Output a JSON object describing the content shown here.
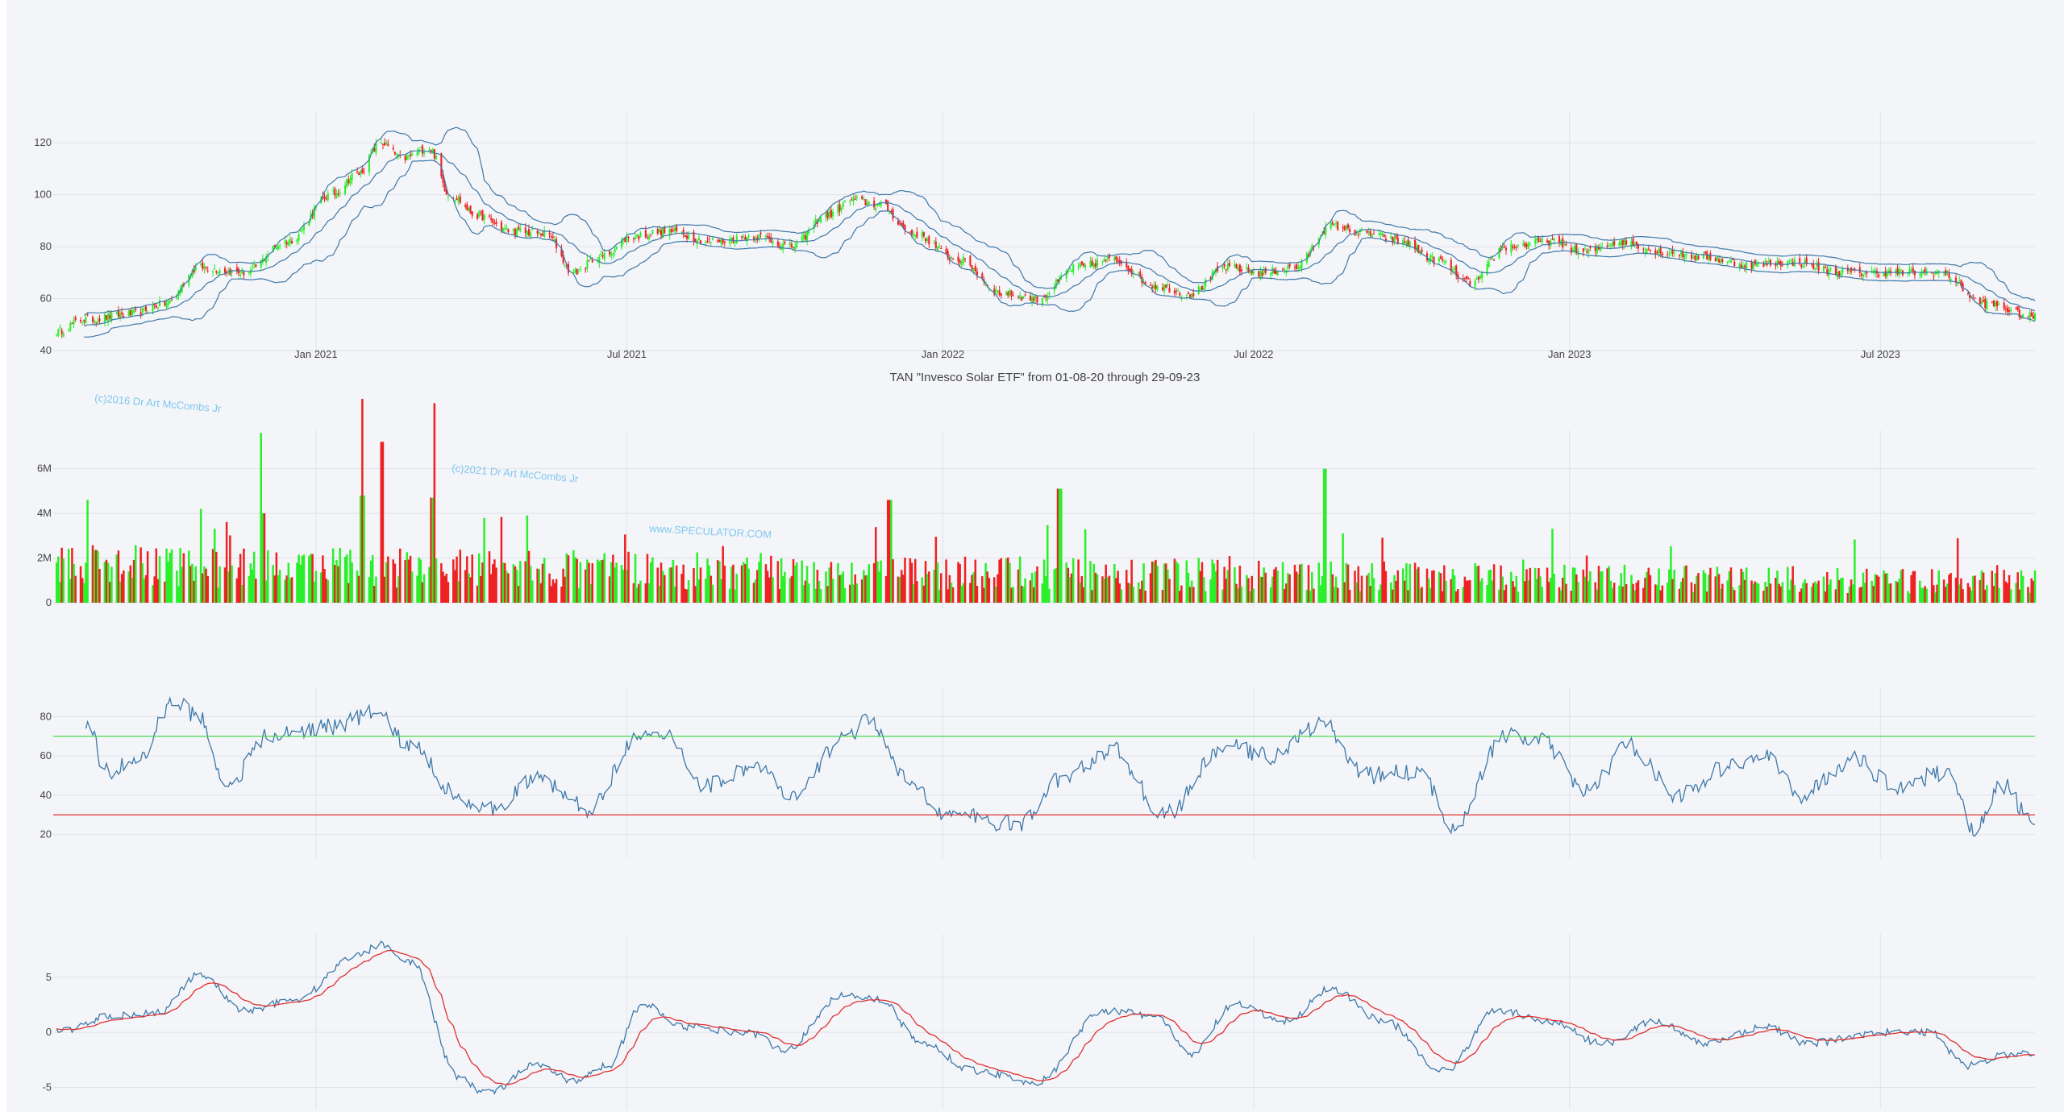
{
  "chart_title": "TAN \"Invesco Solar ETF\" from 01-08-20 through 29-09-23",
  "watermarks": [
    "(c)2016 Dr Art McCombs Jr",
    "(c)2021 Dr Art McCombs Jr",
    "www.SPECULATOR.COM"
  ],
  "colors": {
    "background": "#ffffff",
    "plot_bg": "#f4f5f9",
    "grid": "#dfe2ea",
    "up": "#2bef2b",
    "down": "#ee2222",
    "band": "#3e78a8",
    "rsi_line": "#3e78a8",
    "rsi_upper": "#4ad94a",
    "rsi_lower": "#e03030",
    "macd": "#3e78a8",
    "signal": "#e03030"
  },
  "chart_data": [
    {
      "type": "candlestick",
      "name": "price",
      "x_range": [
        "2020-08-01",
        "2023-09-29"
      ],
      "x_ticks": [
        "Jan 2021",
        "Jul 2021",
        "Jan 2022",
        "Jul 2022",
        "Jan 2023",
        "Jul 2023"
      ],
      "y_ticks": [
        40,
        60,
        80,
        100,
        120
      ],
      "ylim": [
        40,
        130
      ],
      "overlays": [
        "bollinger_upper",
        "bollinger_middle",
        "bollinger_lower"
      ],
      "close_anchors": [
        [
          "2020-08-01",
          47
        ],
        [
          "2020-08-20",
          52
        ],
        [
          "2020-09-15",
          54
        ],
        [
          "2020-10-05",
          58
        ],
        [
          "2020-10-25",
          72
        ],
        [
          "2020-11-20",
          70
        ],
        [
          "2020-12-15",
          82
        ],
        [
          "2021-01-10",
          100
        ],
        [
          "2021-01-25",
          108
        ],
        [
          "2021-02-08",
          120
        ],
        [
          "2021-02-20",
          114
        ],
        [
          "2021-03-08",
          118
        ],
        [
          "2021-03-20",
          100
        ],
        [
          "2021-04-05",
          92
        ],
        [
          "2021-04-25",
          86
        ],
        [
          "2021-05-15",
          85
        ],
        [
          "2021-05-31",
          70
        ],
        [
          "2021-06-15",
          76
        ],
        [
          "2021-07-05",
          84
        ],
        [
          "2021-07-25",
          86
        ],
        [
          "2021-08-20",
          82
        ],
        [
          "2021-09-15",
          84
        ],
        [
          "2021-10-05",
          80
        ],
        [
          "2021-10-25",
          92
        ],
        [
          "2021-11-10",
          98
        ],
        [
          "2021-11-25",
          96
        ],
        [
          "2021-12-15",
          85
        ],
        [
          "2022-01-10",
          75
        ],
        [
          "2022-02-05",
          62
        ],
        [
          "2022-02-25",
          60
        ],
        [
          "2022-03-20",
          72
        ],
        [
          "2022-04-10",
          75
        ],
        [
          "2022-05-05",
          65
        ],
        [
          "2022-05-25",
          62
        ],
        [
          "2022-06-15",
          72
        ],
        [
          "2022-07-05",
          70
        ],
        [
          "2022-07-25",
          72
        ],
        [
          "2022-08-15",
          88
        ],
        [
          "2022-09-05",
          85
        ],
        [
          "2022-09-25",
          82
        ],
        [
          "2022-10-15",
          75
        ],
        [
          "2022-11-05",
          66
        ],
        [
          "2022-11-25",
          80
        ],
        [
          "2022-12-20",
          82
        ],
        [
          "2023-01-10",
          78
        ],
        [
          "2023-01-30",
          82
        ],
        [
          "2023-02-25",
          78
        ],
        [
          "2023-03-20",
          76
        ],
        [
          "2023-04-15",
          73
        ],
        [
          "2023-05-10",
          74
        ],
        [
          "2023-06-10",
          70
        ],
        [
          "2023-07-10",
          70
        ],
        [
          "2023-08-05",
          70
        ],
        [
          "2023-08-31",
          58
        ],
        [
          "2023-09-29",
          53
        ]
      ]
    },
    {
      "type": "bar",
      "name": "volume",
      "y_ticks": [
        "0",
        "2M",
        "4M",
        "6M"
      ],
      "ylim": [
        0,
        7500000
      ],
      "spikes": [
        [
          "2021-02-08",
          7200000
        ],
        [
          "2021-01-28",
          4800000
        ],
        [
          "2021-03-10",
          4700000
        ],
        [
          "2021-12-01",
          4600000
        ],
        [
          "2022-03-10",
          5100000
        ],
        [
          "2022-08-12",
          6000000
        ],
        [
          "2020-12-01",
          4000000
        ],
        [
          "2021-04-10",
          3800000
        ]
      ]
    },
    {
      "type": "line",
      "name": "rsi",
      "y_ticks": [
        20,
        40,
        60,
        80
      ],
      "ylim": [
        10,
        92
      ],
      "hlines": [
        70,
        30
      ],
      "anchors": [
        [
          "2020-08-20",
          78
        ],
        [
          "2020-09-01",
          52
        ],
        [
          "2020-09-20",
          58
        ],
        [
          "2020-10-10",
          88
        ],
        [
          "2020-10-25",
          80
        ],
        [
          "2020-11-10",
          45
        ],
        [
          "2020-12-05",
          70
        ],
        [
          "2021-01-10",
          75
        ],
        [
          "2021-02-05",
          82
        ],
        [
          "2021-02-25",
          65
        ],
        [
          "2021-03-25",
          40
        ],
        [
          "2021-04-10",
          32
        ],
        [
          "2021-05-10",
          48
        ],
        [
          "2021-06-10",
          33
        ],
        [
          "2021-07-05",
          68
        ],
        [
          "2021-07-25",
          70
        ],
        [
          "2021-08-15",
          45
        ],
        [
          "2021-09-15",
          55
        ],
        [
          "2021-10-05",
          38
        ],
        [
          "2021-11-05",
          70
        ],
        [
          "2021-11-20",
          78
        ],
        [
          "2021-12-10",
          48
        ],
        [
          "2022-01-05",
          30
        ],
        [
          "2022-02-15",
          25
        ],
        [
          "2022-03-10",
          48
        ],
        [
          "2022-04-10",
          63
        ],
        [
          "2022-05-10",
          30
        ],
        [
          "2022-06-15",
          65
        ],
        [
          "2022-07-10",
          60
        ],
        [
          "2022-08-10",
          76
        ],
        [
          "2022-09-05",
          50
        ],
        [
          "2022-10-05",
          52
        ],
        [
          "2022-10-25",
          25
        ],
        [
          "2022-11-25",
          70
        ],
        [
          "2022-12-15",
          68
        ],
        [
          "2023-01-10",
          42
        ],
        [
          "2023-02-05",
          65
        ],
        [
          "2023-03-05",
          40
        ],
        [
          "2023-04-05",
          55
        ],
        [
          "2023-04-25",
          60
        ],
        [
          "2023-05-15",
          40
        ],
        [
          "2023-06-15",
          58
        ],
        [
          "2023-07-10",
          45
        ],
        [
          "2023-08-10",
          52
        ],
        [
          "2023-08-25",
          22
        ],
        [
          "2023-09-10",
          45
        ],
        [
          "2023-09-29",
          25
        ]
      ]
    },
    {
      "type": "line",
      "name": "macd",
      "y_ticks": [
        -5,
        0,
        5
      ],
      "ylim": [
        -6.5,
        8.5
      ],
      "series": [
        "macd",
        "signal"
      ],
      "anchors": [
        [
          "2020-08-01",
          0
        ],
        [
          "2020-09-05",
          1.5
        ],
        [
          "2020-10-01",
          1.8
        ],
        [
          "2020-10-25",
          5.2
        ],
        [
          "2020-11-20",
          2.0
        ],
        [
          "2020-12-20",
          3.0
        ],
        [
          "2021-01-25",
          7.0
        ],
        [
          "2021-02-08",
          8.0
        ],
        [
          "2021-02-25",
          6.5
        ],
        [
          "2021-03-25",
          -4.0
        ],
        [
          "2021-04-10",
          -5.5
        ],
        [
          "2021-05-10",
          -3.0
        ],
        [
          "2021-06-01",
          -4.5
        ],
        [
          "2021-06-20",
          -3.0
        ],
        [
          "2021-07-10",
          2.5
        ],
        [
          "2021-08-05",
          0.5
        ],
        [
          "2021-09-10",
          0.0
        ],
        [
          "2021-10-01",
          -1.5
        ],
        [
          "2021-11-05",
          3.5
        ],
        [
          "2021-11-25",
          3.0
        ],
        [
          "2021-12-20",
          -1.0
        ],
        [
          "2022-01-20",
          -3.5
        ],
        [
          "2022-02-25",
          -4.5
        ],
        [
          "2022-04-05",
          2.0
        ],
        [
          "2022-05-05",
          1.5
        ],
        [
          "2022-05-25",
          -2.0
        ],
        [
          "2022-06-20",
          2.5
        ],
        [
          "2022-07-20",
          1.0
        ],
        [
          "2022-08-15",
          4.0
        ],
        [
          "2022-09-15",
          1.0
        ],
        [
          "2022-10-20",
          -3.5
        ],
        [
          "2022-11-20",
          2.0
        ],
        [
          "2022-12-20",
          1.0
        ],
        [
          "2023-01-20",
          -1.0
        ],
        [
          "2023-02-20",
          1.0
        ],
        [
          "2023-03-20",
          -1.0
        ],
        [
          "2023-04-25",
          0.5
        ],
        [
          "2023-05-20",
          -1.0
        ],
        [
          "2023-07-01",
          0.0
        ],
        [
          "2023-07-30",
          0.0
        ],
        [
          "2023-08-20",
          -3.0
        ],
        [
          "2023-09-15",
          -2.0
        ],
        [
          "2023-09-29",
          -2.0
        ]
      ]
    }
  ]
}
